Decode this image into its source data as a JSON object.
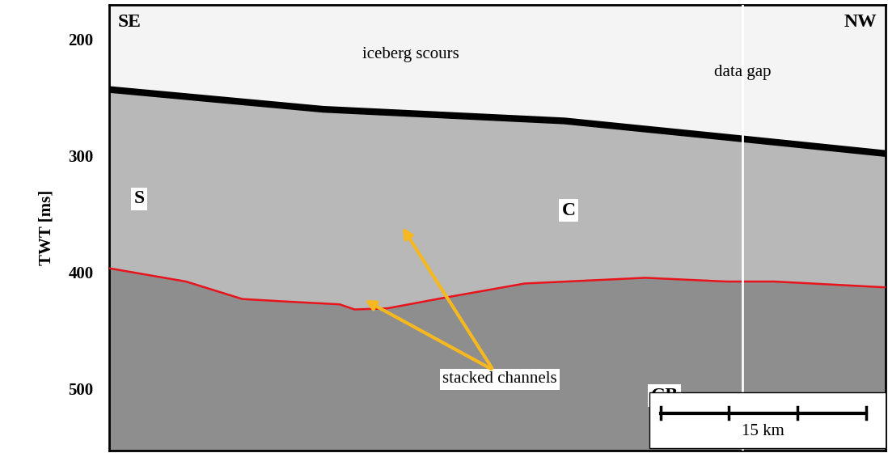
{
  "chart_data": {
    "type": "line",
    "ylabel": "TWT [ms]",
    "xlim": [
      0,
      56.6
    ],
    "ylim": [
      553,
      170
    ],
    "yticks": [
      200,
      300,
      400,
      500
    ],
    "tick_labels": "y",
    "grid": false,
    "series": [
      {
        "color": "#000000",
        "x": [
          0,
          15.6,
          33.2,
          45,
          56.6
        ],
        "values": [
          243,
          260,
          270,
          284,
          298
        ]
      },
      {
        "color": "#e8141c",
        "x": [
          0,
          5.6,
          9.7,
          12.6,
          16.8,
          17.9,
          20.3,
          24.4,
          30.3,
          39.1,
          45,
          48.5,
          56.6
        ],
        "values": [
          396.6,
          408,
          423,
          425,
          427.6,
          432,
          431,
          422,
          409.7,
          404.8,
          408,
          408,
          413
        ]
      }
    ],
    "annotations": {
      "left": "SE",
      "right": "NW",
      "scours": "iceberg scours",
      "unit_s": "S",
      "unit_c": "C",
      "unit_gb": "GB",
      "channels": "stacked channels"
    },
    "data_gap": {
      "label": "data gap",
      "x": 46.2
    },
    "scale_bar": {
      "length": 15,
      "label": "15 km"
    }
  }
}
